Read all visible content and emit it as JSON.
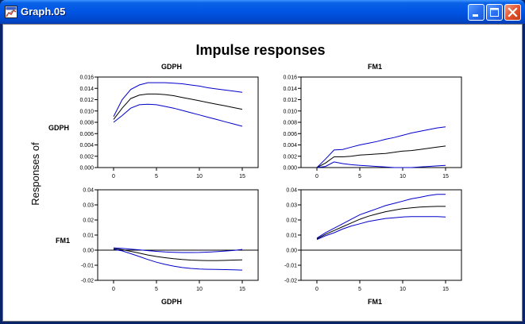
{
  "window": {
    "title": "Graph.05",
    "app_icon": "eviews-graph-icon",
    "controls": [
      "minimize-icon",
      "maximize-icon",
      "close-icon"
    ]
  },
  "graph": {
    "title": "Impulse responses",
    "y_side_label": "Responses of",
    "column_labels_top": [
      "GDPH",
      "FM1"
    ],
    "row_labels": [
      "GDPH",
      "FM1"
    ],
    "column_labels_bottom": [
      "GDPH",
      "FM1"
    ],
    "colors": {
      "band": "#0000cc",
      "central": "#000000",
      "zero_line": "#000000"
    }
  },
  "chart_data": [
    {
      "type": "line",
      "title": "GDPH",
      "row_label": "GDPH",
      "x": [
        0,
        1,
        2,
        3,
        4,
        5,
        6,
        7,
        8,
        9,
        10,
        11,
        12,
        13,
        14,
        15
      ],
      "xticks": [
        0,
        5,
        10,
        15
      ],
      "xtick_labels": [
        "0",
        "5",
        "10",
        "15"
      ],
      "ylim": [
        0,
        0.016
      ],
      "yticks": [
        0,
        0.002,
        0.004,
        0.006,
        0.008,
        0.01,
        0.012,
        0.014,
        0.016
      ],
      "ytick_labels": [
        "0.000",
        "0.002",
        "0.004",
        "0.006",
        "0.008",
        "0.010",
        "0.012",
        "0.014",
        "0.016"
      ],
      "zero_line": false,
      "series": [
        {
          "role": "upper",
          "values": [
            0.009,
            0.012,
            0.0138,
            0.0146,
            0.015,
            0.015,
            0.015,
            0.0149,
            0.0148,
            0.0146,
            0.0144,
            0.0141,
            0.0139,
            0.0137,
            0.0135,
            0.0133
          ]
        },
        {
          "role": "central",
          "values": [
            0.0085,
            0.0105,
            0.0122,
            0.0128,
            0.013,
            0.013,
            0.0129,
            0.0127,
            0.0124,
            0.0121,
            0.0118,
            0.0115,
            0.0112,
            0.0109,
            0.0106,
            0.0103
          ]
        },
        {
          "role": "lower",
          "values": [
            0.008,
            0.0092,
            0.0105,
            0.0111,
            0.0112,
            0.0111,
            0.0108,
            0.0105,
            0.0101,
            0.0097,
            0.0093,
            0.0089,
            0.0085,
            0.0081,
            0.0077,
            0.0073
          ]
        }
      ]
    },
    {
      "type": "line",
      "title": "FM1",
      "row_label": "",
      "x": [
        0,
        1,
        2,
        3,
        4,
        5,
        6,
        7,
        8,
        9,
        10,
        11,
        12,
        13,
        14,
        15
      ],
      "xticks": [
        0,
        5,
        10,
        15
      ],
      "xtick_labels": [
        "0",
        "5",
        "10",
        "15"
      ],
      "ylim": [
        0,
        0.016
      ],
      "yticks": [
        0,
        0.002,
        0.004,
        0.006,
        0.008,
        0.01,
        0.012,
        0.014,
        0.016
      ],
      "ytick_labels": [
        "0.000",
        "0.002",
        "0.004",
        "0.006",
        "0.008",
        "0.010",
        "0.012",
        "0.014",
        "0.016"
      ],
      "zero_line": false,
      "series": [
        {
          "role": "upper",
          "values": [
            0.0,
            0.0015,
            0.0031,
            0.0032,
            0.0036,
            0.004,
            0.0043,
            0.0046,
            0.005,
            0.0053,
            0.0057,
            0.0061,
            0.0064,
            0.0067,
            0.007,
            0.0072
          ]
        },
        {
          "role": "central",
          "values": [
            0.0,
            0.0008,
            0.0019,
            0.0019,
            0.002,
            0.0022,
            0.0023,
            0.0024,
            0.0025,
            0.0027,
            0.0029,
            0.003,
            0.0032,
            0.0034,
            0.0036,
            0.0038
          ]
        },
        {
          "role": "lower",
          "values": [
            0.0,
            0.0002,
            0.001,
            0.0007,
            0.0005,
            0.0004,
            0.0003,
            0.0002,
            0.0001,
            0.0,
            0.0,
            0.0,
            0.0001,
            0.0002,
            0.0003,
            0.0004
          ]
        }
      ]
    },
    {
      "type": "line",
      "title": "",
      "row_label": "FM1",
      "x": [
        0,
        1,
        2,
        3,
        4,
        5,
        6,
        7,
        8,
        9,
        10,
        11,
        12,
        13,
        14,
        15
      ],
      "xticks": [
        0,
        5,
        10,
        15
      ],
      "xtick_labels": [
        "0",
        "5",
        "10",
        "15"
      ],
      "ylim": [
        -0.02,
        0.04
      ],
      "yticks": [
        -0.02,
        -0.01,
        0,
        0.01,
        0.02,
        0.03,
        0.04
      ],
      "ytick_labels": [
        "-0.02",
        "-0.01",
        "0.00",
        "0.01",
        "0.02",
        "0.03",
        "0.04"
      ],
      "zero_line": true,
      "series": [
        {
          "role": "upper",
          "values": [
            0.0015,
            0.0012,
            0.0007,
            0.0002,
            -0.0003,
            -0.0008,
            -0.0012,
            -0.0014,
            -0.0016,
            -0.0016,
            -0.0015,
            -0.0013,
            -0.001,
            -0.0006,
            -0.0002,
            0.0005
          ]
        },
        {
          "role": "central",
          "values": [
            0.001,
            0.0003,
            -0.0008,
            -0.002,
            -0.0032,
            -0.0042,
            -0.005,
            -0.0057,
            -0.0062,
            -0.0066,
            -0.0068,
            -0.0069,
            -0.0069,
            -0.0068,
            -0.0066,
            -0.0064
          ]
        },
        {
          "role": "lower",
          "values": [
            0.0005,
            -0.0005,
            -0.0023,
            -0.0042,
            -0.0062,
            -0.008,
            -0.0094,
            -0.0106,
            -0.0115,
            -0.0121,
            -0.0125,
            -0.0127,
            -0.0128,
            -0.0129,
            -0.013,
            -0.0132
          ]
        }
      ]
    },
    {
      "type": "line",
      "title": "",
      "row_label": "",
      "x": [
        0,
        1,
        2,
        3,
        4,
        5,
        6,
        7,
        8,
        9,
        10,
        11,
        12,
        13,
        14,
        15
      ],
      "xticks": [
        0,
        5,
        10,
        15
      ],
      "xtick_labels": [
        "0",
        "5",
        "10",
        "15"
      ],
      "ylim": [
        -0.02,
        0.04
      ],
      "yticks": [
        -0.02,
        -0.01,
        0,
        0.01,
        0.02,
        0.03,
        0.04
      ],
      "ytick_labels": [
        "-0.02",
        "-0.01",
        "0.00",
        "0.01",
        "0.02",
        "0.03",
        "0.04"
      ],
      "zero_line": true,
      "series": [
        {
          "role": "upper",
          "values": [
            0.008,
            0.0115,
            0.0145,
            0.0175,
            0.0205,
            0.0235,
            0.0255,
            0.0275,
            0.0295,
            0.031,
            0.0325,
            0.034,
            0.035,
            0.0362,
            0.037,
            0.037
          ]
        },
        {
          "role": "central",
          "values": [
            0.0075,
            0.0105,
            0.013,
            0.0155,
            0.018,
            0.0205,
            0.0225,
            0.024,
            0.0255,
            0.0265,
            0.0275,
            0.028,
            0.0285,
            0.0288,
            0.029,
            0.029
          ]
        },
        {
          "role": "lower",
          "values": [
            0.007,
            0.0095,
            0.0115,
            0.014,
            0.016,
            0.0175,
            0.019,
            0.02,
            0.021,
            0.0215,
            0.022,
            0.0222,
            0.0222,
            0.0222,
            0.0222,
            0.022
          ]
        }
      ]
    }
  ]
}
